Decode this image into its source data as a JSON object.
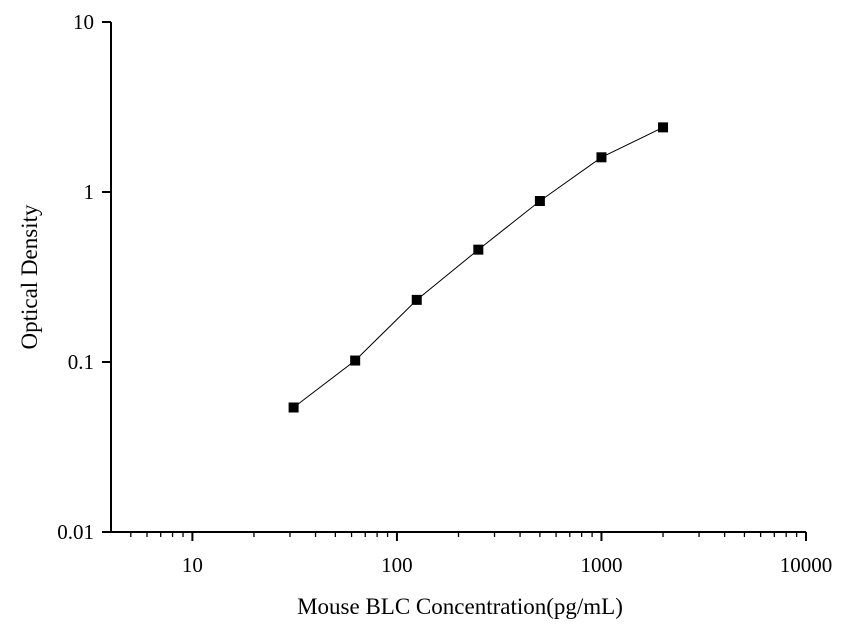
{
  "chart_data": {
    "type": "scatter",
    "xlabel": "Mouse BLC Concentration(pg/mL)",
    "ylabel": "Optical Density",
    "xscale": "log",
    "yscale": "log",
    "xlim": [
      4,
      10000
    ],
    "ylim": [
      0.01,
      10
    ],
    "x_ticks": [
      10,
      100,
      1000,
      10000
    ],
    "x_tick_labels": [
      "10",
      "100",
      "1000",
      "10000"
    ],
    "y_ticks": [
      0.01,
      0.1,
      1,
      10
    ],
    "y_tick_labels": [
      "0.01",
      "0.1",
      "1",
      "10"
    ],
    "grid": false,
    "legend": "none",
    "series": [
      {
        "x": [
          31.25,
          62.5,
          125,
          250,
          500,
          1000,
          2000
        ],
        "y": [
          0.054,
          0.102,
          0.232,
          0.458,
          0.885,
          1.6,
          2.4
        ],
        "marker": "square",
        "connected": true,
        "color": "#000000"
      }
    ]
  }
}
